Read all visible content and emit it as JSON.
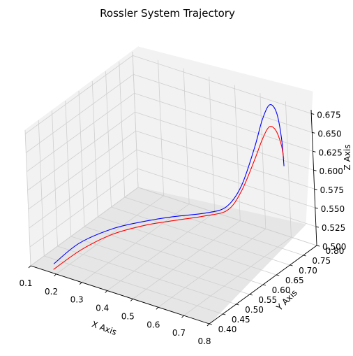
{
  "chart_data": {
    "type": "line",
    "projection": "3d",
    "title": "Rossler System Trajectory",
    "xlabel": "X Axis",
    "ylabel": "Y Axis",
    "zlabel": "Z Axis",
    "xlim": [
      0.1,
      0.8
    ],
    "ylim": [
      0.4,
      0.8
    ],
    "zlim": [
      0.5,
      0.68
    ],
    "xticks": [
      "0.1",
      "0.2",
      "0.3",
      "0.4",
      "0.5",
      "0.6",
      "0.7",
      "0.8"
    ],
    "yticks": [
      "0.40",
      "0.45",
      "0.50",
      "0.55",
      "0.60",
      "0.65",
      "0.70",
      "0.75",
      "0.80"
    ],
    "zticks": [
      "0.500",
      "0.525",
      "0.550",
      "0.575",
      "0.600",
      "0.625",
      "0.650",
      "0.675"
    ],
    "grid": true,
    "series": [
      {
        "color": "#0000ff",
        "points": [
          [
            0.17,
            0.42,
            0.505
          ],
          [
            0.22,
            0.47,
            0.525
          ],
          [
            0.3,
            0.52,
            0.54
          ],
          [
            0.38,
            0.56,
            0.548
          ],
          [
            0.46,
            0.6,
            0.553
          ],
          [
            0.54,
            0.64,
            0.556
          ],
          [
            0.59,
            0.67,
            0.562
          ],
          [
            0.62,
            0.7,
            0.585
          ],
          [
            0.645,
            0.73,
            0.63
          ],
          [
            0.66,
            0.75,
            0.665
          ],
          [
            0.675,
            0.765,
            0.682
          ],
          [
            0.69,
            0.775,
            0.67
          ],
          [
            0.7,
            0.78,
            0.635
          ],
          [
            0.705,
            0.78,
            0.6
          ]
        ]
      },
      {
        "color": "#ff0000",
        "points": [
          [
            0.19,
            0.4,
            0.505
          ],
          [
            0.25,
            0.45,
            0.525
          ],
          [
            0.32,
            0.5,
            0.54
          ],
          [
            0.4,
            0.55,
            0.548
          ],
          [
            0.48,
            0.59,
            0.553
          ],
          [
            0.55,
            0.63,
            0.556
          ],
          [
            0.6,
            0.665,
            0.56
          ],
          [
            0.625,
            0.695,
            0.58
          ],
          [
            0.648,
            0.725,
            0.615
          ],
          [
            0.662,
            0.745,
            0.64
          ],
          [
            0.675,
            0.76,
            0.654
          ],
          [
            0.69,
            0.77,
            0.648
          ],
          [
            0.7,
            0.778,
            0.628
          ],
          [
            0.705,
            0.78,
            0.61
          ]
        ]
      }
    ]
  }
}
